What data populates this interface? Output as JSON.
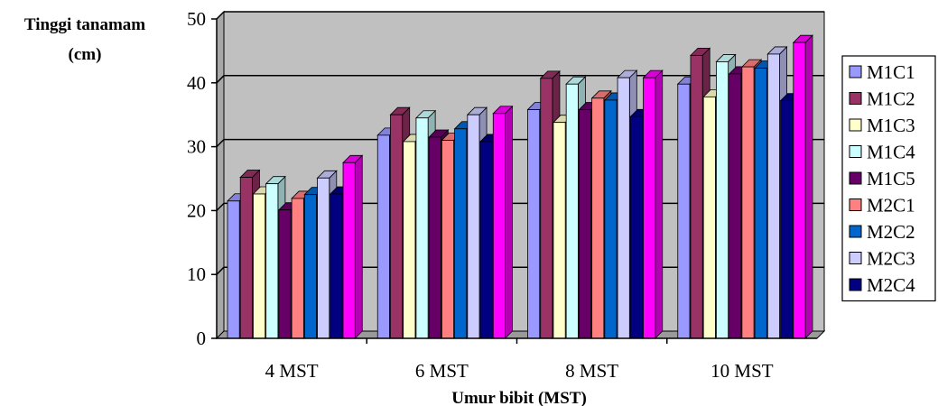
{
  "chart_data": {
    "type": "bar",
    "title": "",
    "ylabel_line1": "Tinggi tanamam",
    "ylabel_line2": "(cm)",
    "xlabel": "Umur bibit (MST)",
    "ylim": [
      0,
      50
    ],
    "yticks": [
      0,
      10,
      20,
      30,
      40,
      50
    ],
    "categories": [
      "4 MST",
      "6 MST",
      "8 MST",
      "10 MST"
    ],
    "grid": true,
    "legend_position": "right",
    "style": "3d-clustered-bar",
    "plot_background": "#c0c0c0",
    "series": [
      {
        "name": "M1C1",
        "color": "#9999ff",
        "values": [
          21.5,
          31.8,
          35.8,
          39.8
        ]
      },
      {
        "name": "M1C2",
        "color": "#993366",
        "values": [
          25.2,
          35.0,
          40.7,
          44.3
        ]
      },
      {
        "name": "M1C3",
        "color": "#ffffcc",
        "values": [
          22.6,
          30.8,
          33.8,
          37.8
        ]
      },
      {
        "name": "M1C4",
        "color": "#ccffff",
        "values": [
          24.2,
          34.5,
          39.8,
          43.3
        ]
      },
      {
        "name": "M1C5",
        "color": "#660066",
        "values": [
          20.1,
          31.5,
          35.8,
          41.4
        ]
      },
      {
        "name": "M2C1",
        "color": "#ff8080",
        "values": [
          21.9,
          31.0,
          37.6,
          42.5
        ]
      },
      {
        "name": "M2C2",
        "color": "#0066cc",
        "values": [
          22.5,
          32.8,
          37.3,
          42.3
        ]
      },
      {
        "name": "M2C3",
        "color": "#ccccff",
        "values": [
          25.1,
          35.0,
          40.8,
          44.5
        ]
      },
      {
        "name": "M2C4",
        "color": "#000080",
        "values": [
          22.6,
          30.8,
          34.7,
          37.2
        ]
      },
      {
        "name": "",
        "color": "#ff00ff",
        "values": [
          27.5,
          35.2,
          40.8,
          46.3
        ]
      }
    ]
  }
}
